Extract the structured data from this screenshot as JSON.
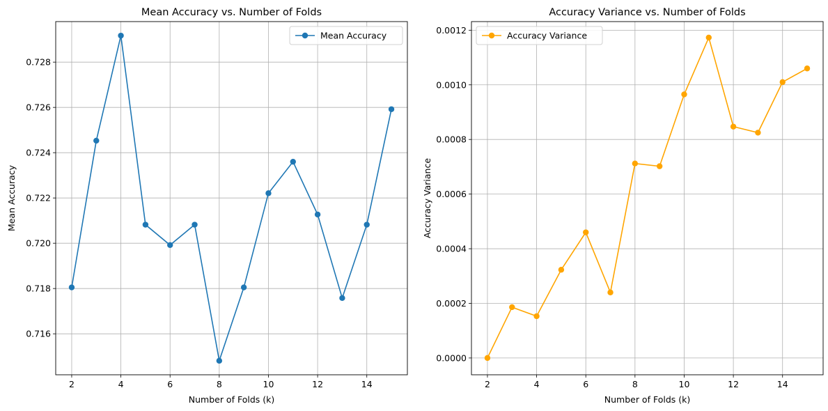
{
  "chart_data": [
    {
      "type": "line",
      "title": "Mean Accuracy vs. Number of Folds",
      "xlabel": "Number of Folds (k)",
      "ylabel": "Mean Accuracy",
      "xlim": [
        1.35,
        15.65
      ],
      "ylim": [
        0.71419,
        0.72979
      ],
      "xticks": [
        2,
        4,
        6,
        8,
        10,
        12,
        14
      ],
      "yticks": [
        0.716,
        0.718,
        0.72,
        0.722,
        0.724,
        0.726,
        0.728
      ],
      "tick_decimals": 3,
      "grid": true,
      "legend_position": "upper right",
      "series": [
        {
          "name": "Mean Accuracy",
          "color": "#1f77b4",
          "marker": "circle",
          "x": [
            2,
            3,
            4,
            5,
            6,
            7,
            8,
            9,
            10,
            11,
            12,
            13,
            14,
            15
          ],
          "y": [
            0.71805,
            0.72453,
            0.72917,
            0.72082,
            0.71992,
            0.72082,
            0.71481,
            0.71805,
            0.72221,
            0.7236,
            0.72127,
            0.71758,
            0.72082,
            0.72592
          ]
        }
      ]
    },
    {
      "type": "line",
      "title": "Accuracy Variance vs. Number of Folds",
      "xlabel": "Number of Folds (k)",
      "ylabel": "Accuracy Variance",
      "xlim": [
        1.35,
        15.65
      ],
      "ylim": [
        -6.15e-05,
        0.0012315
      ],
      "xticks": [
        2,
        4,
        6,
        8,
        10,
        12,
        14
      ],
      "yticks": [
        0.0,
        0.0002,
        0.0004,
        0.0006,
        0.0008,
        0.001,
        0.0012
      ],
      "tick_decimals": 4,
      "grid": true,
      "legend_position": "upper left",
      "series": [
        {
          "name": "Accuracy Variance",
          "color": "#ffa500",
          "marker": "circle",
          "x": [
            2,
            3,
            4,
            5,
            6,
            7,
            8,
            9,
            10,
            11,
            12,
            13,
            14,
            15
          ],
          "y": [
            0.0,
            0.000186,
            0.000153,
            0.000323,
            0.00046,
            0.00024,
            0.000712,
            0.000702,
            0.000965,
            0.001173,
            0.000847,
            0.000825,
            0.00101,
            0.00106
          ]
        }
      ]
    }
  ]
}
